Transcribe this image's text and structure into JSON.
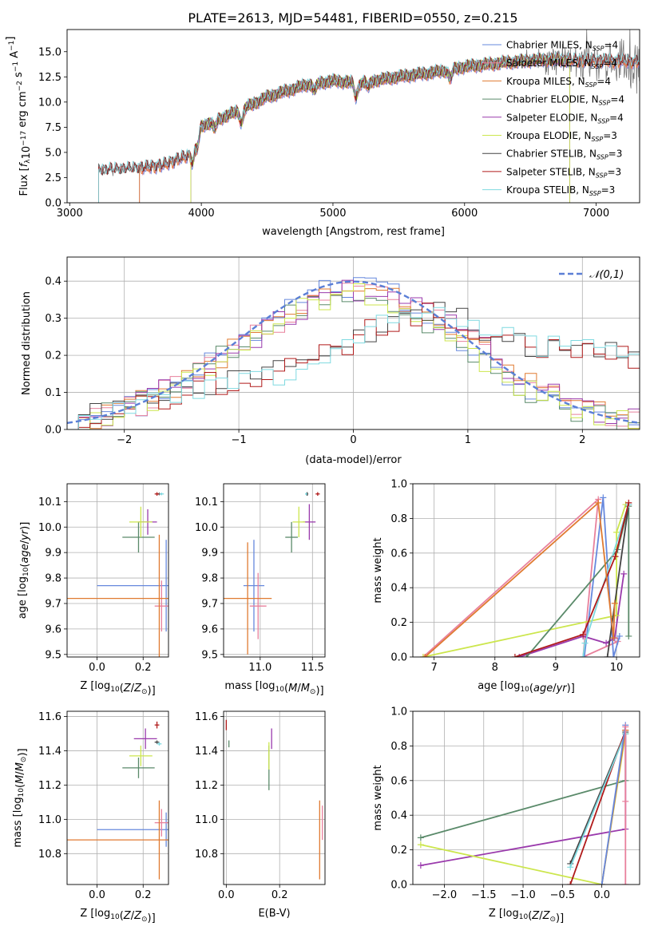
{
  "chart_data": [
    {
      "type": "line",
      "title": "PLATE=2613, MJD=54481, FIBERID=0550, z=0.215",
      "xlabel": "wavelength [Angstrom, rest frame]",
      "ylabel": "Flux [f_λ 10^-17 erg cm^-2 s^-1 A^-1]",
      "xlim": [
        2980,
        7330
      ],
      "ylim": [
        0,
        17.2
      ],
      "xticks": [
        "3000",
        "4000",
        "5000",
        "6000",
        "7000"
      ],
      "yticks": [
        "0.0",
        "2.5",
        "5.0",
        "7.5",
        "10.0",
        "12.5",
        "15.0"
      ],
      "grid": false,
      "legend_position": "right",
      "series": [
        {
          "name": "Chabrier MILES, N_SSP=4",
          "color": "#6688dd",
          "x_range": [
            3530,
            7330
          ]
        },
        {
          "name": "Salpeter MILES, N_SSP=4",
          "color": "#e8809c",
          "x_range": [
            3530,
            7330
          ]
        },
        {
          "name": "Kroupa MILES, N_SSP=4",
          "color": "#e07a30",
          "x_range": [
            3530,
            7330
          ]
        },
        {
          "name": "Chabrier ELODIE, N_SSP=4",
          "color": "#5a8a6a",
          "x_range": [
            3920,
            6800
          ]
        },
        {
          "name": "Salpeter ELODIE, N_SSP=4",
          "color": "#9a3aac",
          "x_range": [
            3920,
            6800
          ]
        },
        {
          "name": "Kroupa ELODIE, N_SSP=3",
          "color": "#cce64d",
          "x_range": [
            3920,
            6800
          ]
        },
        {
          "name": "Chabrier STELIB, N_SSP=3",
          "color": "#444444",
          "x_range": [
            3220,
            7330
          ]
        },
        {
          "name": "Salpeter STELIB, N_SSP=3",
          "color": "#b01a1a",
          "x_range": [
            3220,
            7330
          ]
        },
        {
          "name": "Kroupa STELIB, N_SSP=3",
          "color": "#7fd9e0",
          "x_range": [
            3220,
            7330
          ]
        }
      ],
      "observed_color": "#777777",
      "continuum_anchors": {
        "x": [
          3220,
          3500,
          3700,
          3900,
          4000,
          4300,
          4500,
          4800,
          5000,
          5200,
          5500,
          5800,
          6000,
          6300,
          6600,
          7000,
          7330
        ],
        "y": [
          3.2,
          3.4,
          3.7,
          4.7,
          7.6,
          9.2,
          10.5,
          11.7,
          12.1,
          11.9,
          12.5,
          13.0,
          13.5,
          13.9,
          14.2,
          14.1,
          14.0
        ]
      },
      "absorption_features": [
        {
          "x": 3934,
          "depth": 1.6
        },
        {
          "x": 3969,
          "depth": 1.3
        },
        {
          "x": 4101,
          "depth": 0.8
        },
        {
          "x": 4305,
          "depth": 1.2
        },
        {
          "x": 4861,
          "depth": 0.7
        },
        {
          "x": 5175,
          "depth": 1.4
        },
        {
          "x": 5270,
          "depth": 0.6
        },
        {
          "x": 5892,
          "depth": 0.9
        }
      ]
    },
    {
      "type": "line",
      "xlabel": "(data-model)/error",
      "ylabel": "Normed distribution",
      "xlim": [
        -2.5,
        2.5
      ],
      "ylim": [
        0,
        0.465
      ],
      "xticks": [
        "−2",
        "−1",
        "0",
        "1",
        "2"
      ],
      "yticks": [
        "0.0",
        "0.1",
        "0.2",
        "0.3",
        "0.4"
      ],
      "grid": true,
      "legend_position": "upper right",
      "legend": [
        "𝒩(0,1)"
      ],
      "reference_curve": {
        "name": "N(0,1)",
        "color": "#5b7fd6",
        "mean": 0,
        "sigma": 1
      },
      "bin_width": 0.1,
      "histograms": [
        {
          "color": "#6688dd",
          "shape": "core",
          "center": 0.0,
          "sigma": 1.0,
          "scale": 0.38
        },
        {
          "color": "#e8809c",
          "shape": "core",
          "center": 0.05,
          "sigma": 1.05,
          "scale": 0.37
        },
        {
          "color": "#e07a30",
          "shape": "core",
          "center": 0.05,
          "sigma": 1.05,
          "scale": 0.37
        },
        {
          "color": "#5a8a6a",
          "shape": "core",
          "center": -0.05,
          "sigma": 1.0,
          "scale": 0.36
        },
        {
          "color": "#9a3aac",
          "shape": "core",
          "center": 0.05,
          "sigma": 1.05,
          "scale": 0.37
        },
        {
          "color": "#cce64d",
          "shape": "core",
          "center": 0.0,
          "sigma": 1.0,
          "scale": 0.36
        },
        {
          "color": "#444444",
          "shape": "shifted",
          "center": 0.9,
          "sigma": 1.6,
          "scale": 0.28
        },
        {
          "color": "#b01a1a",
          "shape": "shifted",
          "center": 0.9,
          "sigma": 1.6,
          "scale": 0.28
        },
        {
          "color": "#7fd9e0",
          "shape": "shifted",
          "center": 1.0,
          "sigma": 1.6,
          "scale": 0.28
        }
      ]
    },
    {
      "type": "scatter",
      "xlabel": "Z [log10(Z/Z☉)]",
      "ylabel": "age [log10(age/yr)]",
      "xlim": [
        -0.13,
        0.31
      ],
      "ylim": [
        9.49,
        10.17
      ],
      "xticks": [
        "0.0",
        "0.2"
      ],
      "yticks": [
        "9.5",
        "9.6",
        "9.7",
        "9.8",
        "9.9",
        "10.0",
        "10.1"
      ],
      "grid": true,
      "points": [
        {
          "x": 0.3,
          "y": 9.77,
          "xerr": 0.3,
          "yerr": 0.18,
          "color": "#6688dd"
        },
        {
          "x": 0.28,
          "y": 9.69,
          "xerr": 0.03,
          "yerr": 0.1,
          "color": "#e8809c"
        },
        {
          "x": 0.27,
          "y": 9.72,
          "xerr": 0.4,
          "yerr": 0.25,
          "color": "#e07a30"
        },
        {
          "x": 0.18,
          "y": 9.96,
          "xerr": 0.07,
          "yerr": 0.06,
          "color": "#5a8a6a"
        },
        {
          "x": 0.22,
          "y": 10.02,
          "xerr": 0.04,
          "yerr": 0.05,
          "color": "#9a3aac"
        },
        {
          "x": 0.19,
          "y": 10.02,
          "xerr": 0.05,
          "yerr": 0.06,
          "color": "#cce64d"
        },
        {
          "x": 0.27,
          "y": 10.13,
          "xerr": 0.01,
          "yerr": 0.005,
          "color": "#444444"
        },
        {
          "x": 0.26,
          "y": 10.13,
          "xerr": 0.01,
          "yerr": 0.007,
          "color": "#b01a1a"
        },
        {
          "x": 0.28,
          "y": 10.13,
          "xerr": 0.01,
          "yerr": 0.005,
          "color": "#7fd9e0"
        }
      ]
    },
    {
      "type": "scatter",
      "xlabel": "mass [log10(M/M☉)]",
      "ylabel": "",
      "xlim": [
        10.65,
        11.62
      ],
      "ylim": [
        9.49,
        10.17
      ],
      "xticks": [
        "11.0",
        "11.5"
      ],
      "yticks": [
        "9.5",
        "9.6",
        "9.7",
        "9.8",
        "9.9",
        "10.0",
        "10.1"
      ],
      "grid": true,
      "points": [
        {
          "x": 10.94,
          "y": 9.77,
          "xerr": 0.1,
          "yerr": 0.18,
          "color": "#6688dd"
        },
        {
          "x": 10.98,
          "y": 9.69,
          "xerr": 0.08,
          "yerr": 0.13,
          "color": "#e8809c"
        },
        {
          "x": 10.88,
          "y": 9.72,
          "xerr": 0.23,
          "yerr": 0.22,
          "color": "#e07a30"
        },
        {
          "x": 11.3,
          "y": 9.96,
          "xerr": 0.06,
          "yerr": 0.06,
          "color": "#5a8a6a"
        },
        {
          "x": 11.47,
          "y": 10.02,
          "xerr": 0.06,
          "yerr": 0.07,
          "color": "#9a3aac"
        },
        {
          "x": 11.37,
          "y": 10.02,
          "xerr": 0.06,
          "yerr": 0.06,
          "color": "#cce64d"
        },
        {
          "x": 11.45,
          "y": 10.13,
          "xerr": 0.01,
          "yerr": 0.007,
          "color": "#444444"
        },
        {
          "x": 11.55,
          "y": 10.13,
          "xerr": 0.02,
          "yerr": 0.007,
          "color": "#b01a1a"
        },
        {
          "x": 11.44,
          "y": 10.13,
          "xerr": 0.01,
          "yerr": 0.005,
          "color": "#7fd9e0"
        }
      ]
    },
    {
      "type": "line",
      "xlabel": "age [log10(age/yr)]",
      "ylabel": "mass weight",
      "xlim": [
        6.65,
        10.38
      ],
      "ylim": [
        0,
        1
      ],
      "xticks": [
        "7",
        "8",
        "9",
        "10"
      ],
      "yticks": [
        "0.0",
        "0.2",
        "0.4",
        "0.6",
        "0.8",
        "1.0"
      ],
      "grid": true,
      "series": [
        {
          "color": "#e8809c",
          "x": [
            6.82,
            9.7,
            9.45,
            10.02
          ],
          "y": [
            0.0,
            0.91,
            0.0,
            0.09
          ]
        },
        {
          "color": "#6688dd",
          "x": [
            9.47,
            9.78,
            9.95,
            10.05
          ],
          "y": [
            0.0,
            0.92,
            0.0,
            0.12
          ]
        },
        {
          "color": "#9a3aac",
          "x": [
            8.4,
            9.45,
            9.83,
            9.97,
            10.12
          ],
          "y": [
            0.0,
            0.12,
            0.08,
            0.11,
            0.48
          ]
        },
        {
          "color": "#cce64d",
          "x": [
            6.82,
            10.0,
            10.0,
            10.15
          ],
          "y": [
            0.0,
            0.24,
            0.72,
            0.88
          ]
        },
        {
          "color": "#5a8a6a",
          "x": [
            8.52,
            10.02,
            10.2,
            10.2
          ],
          "y": [
            0.0,
            0.62,
            0.87,
            0.12
          ]
        },
        {
          "color": "#444444",
          "x": [
            9.85,
            10.2
          ],
          "y": [
            0.0,
            0.88
          ]
        },
        {
          "color": "#7fd9e0",
          "x": [
            9.45,
            9.48,
            10.2
          ],
          "y": [
            0.0,
            0.08,
            0.88
          ]
        },
        {
          "color": "#b01a1a",
          "x": [
            8.33,
            9.45,
            9.98,
            10.2
          ],
          "y": [
            0.0,
            0.13,
            0.58,
            0.89
          ]
        },
        {
          "color": "#e07a30",
          "x": [
            6.85,
            9.7,
            9.95,
            9.97
          ],
          "y": [
            0.0,
            0.89,
            0.11,
            0.31
          ]
        }
      ]
    },
    {
      "type": "scatter",
      "xlabel": "Z [log10(Z/Z☉)]",
      "ylabel": "mass [log10(M/M☉)]",
      "xlim": [
        -0.13,
        0.31
      ],
      "ylim": [
        10.62,
        11.63
      ],
      "xticks": [
        "0.0",
        "0.2"
      ],
      "yticks": [
        "10.8",
        "11.0",
        "11.2",
        "11.4",
        "11.6"
      ],
      "grid": true,
      "points": [
        {
          "x": 0.3,
          "y": 10.94,
          "xerr": 0.3,
          "yerr": 0.1,
          "color": "#6688dd"
        },
        {
          "x": 0.28,
          "y": 10.98,
          "xerr": 0.03,
          "yerr": 0.08,
          "color": "#e8809c"
        },
        {
          "x": 0.27,
          "y": 10.88,
          "xerr": 0.4,
          "yerr": 0.23,
          "color": "#e07a30"
        },
        {
          "x": 0.18,
          "y": 11.3,
          "xerr": 0.07,
          "yerr": 0.06,
          "color": "#5a8a6a"
        },
        {
          "x": 0.21,
          "y": 11.47,
          "xerr": 0.05,
          "yerr": 0.06,
          "color": "#9a3aac"
        },
        {
          "x": 0.19,
          "y": 11.37,
          "xerr": 0.05,
          "yerr": 0.06,
          "color": "#cce64d"
        },
        {
          "x": 0.26,
          "y": 11.45,
          "xerr": 0.01,
          "yerr": 0.01,
          "color": "#444444"
        },
        {
          "x": 0.26,
          "y": 11.55,
          "xerr": 0.01,
          "yerr": 0.02,
          "color": "#b01a1a"
        },
        {
          "x": 0.27,
          "y": 11.44,
          "xerr": 0.01,
          "yerr": 0.01,
          "color": "#7fd9e0"
        }
      ]
    },
    {
      "type": "scatter",
      "xlabel": "E(B-V)",
      "ylabel": "",
      "xlim": [
        -0.01,
        0.37
      ],
      "ylim": [
        10.62,
        11.63
      ],
      "xticks": [
        "0.0",
        "0.2"
      ],
      "yticks": [
        "10.8",
        "11.0",
        "11.2",
        "11.4",
        "11.6"
      ],
      "grid": true,
      "points": [
        {
          "x": 0.36,
          "y": 10.98,
          "yerr": 0.1,
          "color": "#e8809c"
        },
        {
          "x": 0.35,
          "y": 10.88,
          "yerr": 0.23,
          "color": "#e07a30"
        },
        {
          "x": 0.16,
          "y": 11.3,
          "yerr": 0.13,
          "color": "#5a8a6a"
        },
        {
          "x": 0.17,
          "y": 11.47,
          "yerr": 0.06,
          "color": "#9a3aac"
        },
        {
          "x": 0.16,
          "y": 11.37,
          "yerr": 0.08,
          "color": "#cce64d"
        },
        {
          "x": 0.01,
          "y": 11.44,
          "yerr": 0.02,
          "color": "#5a8a6a"
        },
        {
          "x": 0.0,
          "y": 11.55,
          "yerr": 0.03,
          "color": "#b01a1a"
        }
      ]
    },
    {
      "type": "line",
      "xlabel": "Z [log10(Z/Z☉)]",
      "ylabel": "mass weight",
      "xlim": [
        -2.4,
        0.48
      ],
      "ylim": [
        0,
        1
      ],
      "xticks": [
        "−2.0",
        "−1.5",
        "−1.0",
        "−0.5",
        "0.0"
      ],
      "yticks": [
        "0.0",
        "0.2",
        "0.4",
        "0.6",
        "0.8",
        "1.0"
      ],
      "grid": true,
      "series": [
        {
          "color": "#5a8a6a",
          "x": [
            -2.3,
            0.3,
            0.3
          ],
          "y": [
            0.27,
            0.6,
            0.87
          ]
        },
        {
          "color": "#9a3aac",
          "x": [
            -2.3,
            0.3,
            0.3
          ],
          "y": [
            0.11,
            0.32,
            0.87
          ]
        },
        {
          "color": "#cce64d",
          "x": [
            -2.3,
            0.0,
            0.3
          ],
          "y": [
            0.23,
            0.0,
            0.87
          ]
        },
        {
          "color": "#444444",
          "x": [
            -0.4,
            0.3
          ],
          "y": [
            0.12,
            0.88
          ]
        },
        {
          "color": "#b01a1a",
          "x": [
            -0.4,
            0.3
          ],
          "y": [
            0.0,
            0.89
          ]
        },
        {
          "color": "#7fd9e0",
          "x": [
            -0.4,
            0.3
          ],
          "y": [
            0.1,
            0.87
          ]
        },
        {
          "color": "#e07a30",
          "x": [
            0.0,
            0.3
          ],
          "y": [
            0.0,
            0.89
          ]
        },
        {
          "color": "#6688dd",
          "x": [
            0.0,
            0.3
          ],
          "y": [
            0.0,
            0.92
          ]
        },
        {
          "color": "#e8809c",
          "x": [
            0.3,
            0.3,
            0.3
          ],
          "y": [
            0.0,
            0.48,
            0.91
          ]
        }
      ]
    }
  ]
}
